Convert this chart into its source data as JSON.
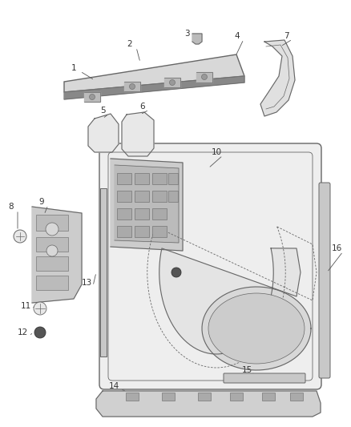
{
  "background_color": "#ffffff",
  "line_color": "#666666",
  "label_color": "#333333",
  "fig_width": 4.38,
  "fig_height": 5.33,
  "dpi": 100,
  "door_fill": "#eeeeee",
  "door_inner_fill": "#f5f5f5",
  "part_fill": "#e0e0e0",
  "part_dark": "#c8c8c8",
  "strip_fill": "#d5d5d5",
  "mech_fill": "#d0d0d0",
  "screw_fill": "#f0f0f0",
  "dark_bolt": "#444444"
}
